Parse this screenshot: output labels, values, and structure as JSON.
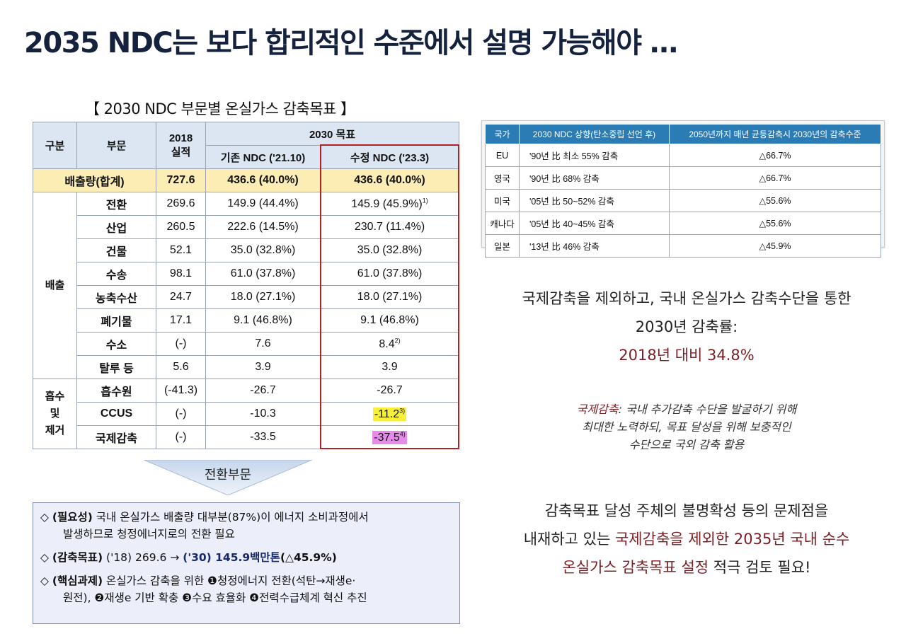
{
  "title": "2035 NDC는 보다 합리적인 수준에서 설명 가능해야 …",
  "table_caption": "【 2030 NDC 부문별 온실가스 감축목표 】",
  "main_table": {
    "headers": {
      "category": "구분",
      "sector": "부문",
      "actual_2018": "2018 실적",
      "target_2030": "2030 목표",
      "existing_ndc": "기존 NDC ('21.10)",
      "revised_ndc": "수정 NDC ('23.3)"
    },
    "total": {
      "label": "배출량(합계)",
      "v2018": "727.6",
      "existing": "436.6 (40.0%)",
      "revised": "436.6 (40.0%)"
    },
    "groups": {
      "emission": "배출",
      "absorption": "흡수 및 제거"
    },
    "rows": [
      {
        "sector": "전환",
        "v2018": "269.6",
        "existing": "149.9 (44.4%)",
        "revised": "145.9 (45.9%)",
        "note": "1)"
      },
      {
        "sector": "산업",
        "v2018": "260.5",
        "existing": "222.6 (14.5%)",
        "revised": "230.7 (11.4%)",
        "note": ""
      },
      {
        "sector": "건물",
        "v2018": "52.1",
        "existing": "35.0 (32.8%)",
        "revised": "35.0 (32.8%)",
        "note": ""
      },
      {
        "sector": "수송",
        "v2018": "98.1",
        "existing": "61.0 (37.8%)",
        "revised": "61.0 (37.8%)",
        "note": ""
      },
      {
        "sector": "농축수산",
        "v2018": "24.7",
        "existing": "18.0 (27.1%)",
        "revised": "18.0 (27.1%)",
        "note": ""
      },
      {
        "sector": "폐기물",
        "v2018": "17.1",
        "existing": "9.1 (46.8%)",
        "revised": "9.1 (46.8%)",
        "note": ""
      },
      {
        "sector": "수소",
        "v2018": "(-)",
        "existing": "7.6",
        "revised": "8.4",
        "note": "2)"
      },
      {
        "sector": "탈루 등",
        "v2018": "5.6",
        "existing": "3.9",
        "revised": "3.9",
        "note": ""
      },
      {
        "sector": "흡수원",
        "v2018": "(-41.3)",
        "existing": "-26.7",
        "revised": "-26.7",
        "note": ""
      },
      {
        "sector": "CCUS",
        "v2018": "(-)",
        "existing": "-10.3",
        "revised": "-11.2",
        "note": "3)"
      },
      {
        "sector": "국제감축",
        "v2018": "(-)",
        "existing": "-33.5",
        "revised": "-37.5",
        "note": "4)"
      }
    ]
  },
  "arrow_label": "전환부문",
  "transition_box": {
    "bullet": "◇",
    "necessity_label": "(필요성)",
    "necessity_text_1": "국내 온실가스 배출량 대부분(87%)이 에너지 소비과정에서",
    "necessity_text_2": "발생하므로 청정에너지로의 전환 필요",
    "target_label": "(감축목표)",
    "target_text_1": "('18) 269.6 →",
    "target_text_2": "('30) 145.9백만톤",
    "target_text_3": "(△45.9%)",
    "core_label": "(핵심과제)",
    "core_text_1": "온실가스 감축을 위한 ❶청정에너지 전환(석탄→재생e·",
    "core_text_2": "원전), ❷재생e 기반 확충 ❸수요 효율화 ❹전력수급체계 혁신 추진"
  },
  "intl_table": {
    "headers": [
      "국가",
      "2030 NDC 상향(탄소중립 선언 후)",
      "2050년까지 매년 균등감축시 2030년의 감축수준"
    ],
    "rows": [
      {
        "country": "EU",
        "ndc": "'90년 比 최소 55% 감축",
        "level": "△66.7%"
      },
      {
        "country": "영국",
        "ndc": "'90년 比 68% 감축",
        "level": "△66.7%"
      },
      {
        "country": "미국",
        "ndc": "'05년 比 50~52% 감축",
        "level": "△55.6%"
      },
      {
        "country": "캐나다",
        "ndc": "'05년 比 40~45% 감축",
        "level": "△55.6%"
      },
      {
        "country": "일본",
        "ndc": "'13년 比 46% 감축",
        "level": "△45.9%"
      }
    ]
  },
  "note1": {
    "line1": "국제감축을 제외하고, 국내 온실가스 감축수단을 통한",
    "line2": "2030년 감축률:",
    "line3": "2018년 대비 34.8%"
  },
  "note2": {
    "term": "국제감축",
    "line1_rest": ": 국내 추가감축 수단을 발굴하기 위해",
    "line2": "최대한 노력하되, 목표 달성을 위해 보충적인",
    "line3": "수단으로 국외 감축 활용"
  },
  "note3": {
    "line1": "감축목표 달성 주체의 불명확성 등의 문제점을",
    "line2_a": "내재하고 있는 ",
    "line2_b": "국제감축을 제외한 2035년 국내 순수",
    "line3_a": "온실가스 감축목표 설정",
    "line3_b": " 적극 검토 필요!"
  },
  "colors": {
    "title": "#15223d",
    "header_bg": "#dce6f3",
    "total_bg": "#fbedb3",
    "frame_red": "#b22222",
    "intl_header": "#2b7bb5",
    "accent_text": "#7a1f24"
  }
}
